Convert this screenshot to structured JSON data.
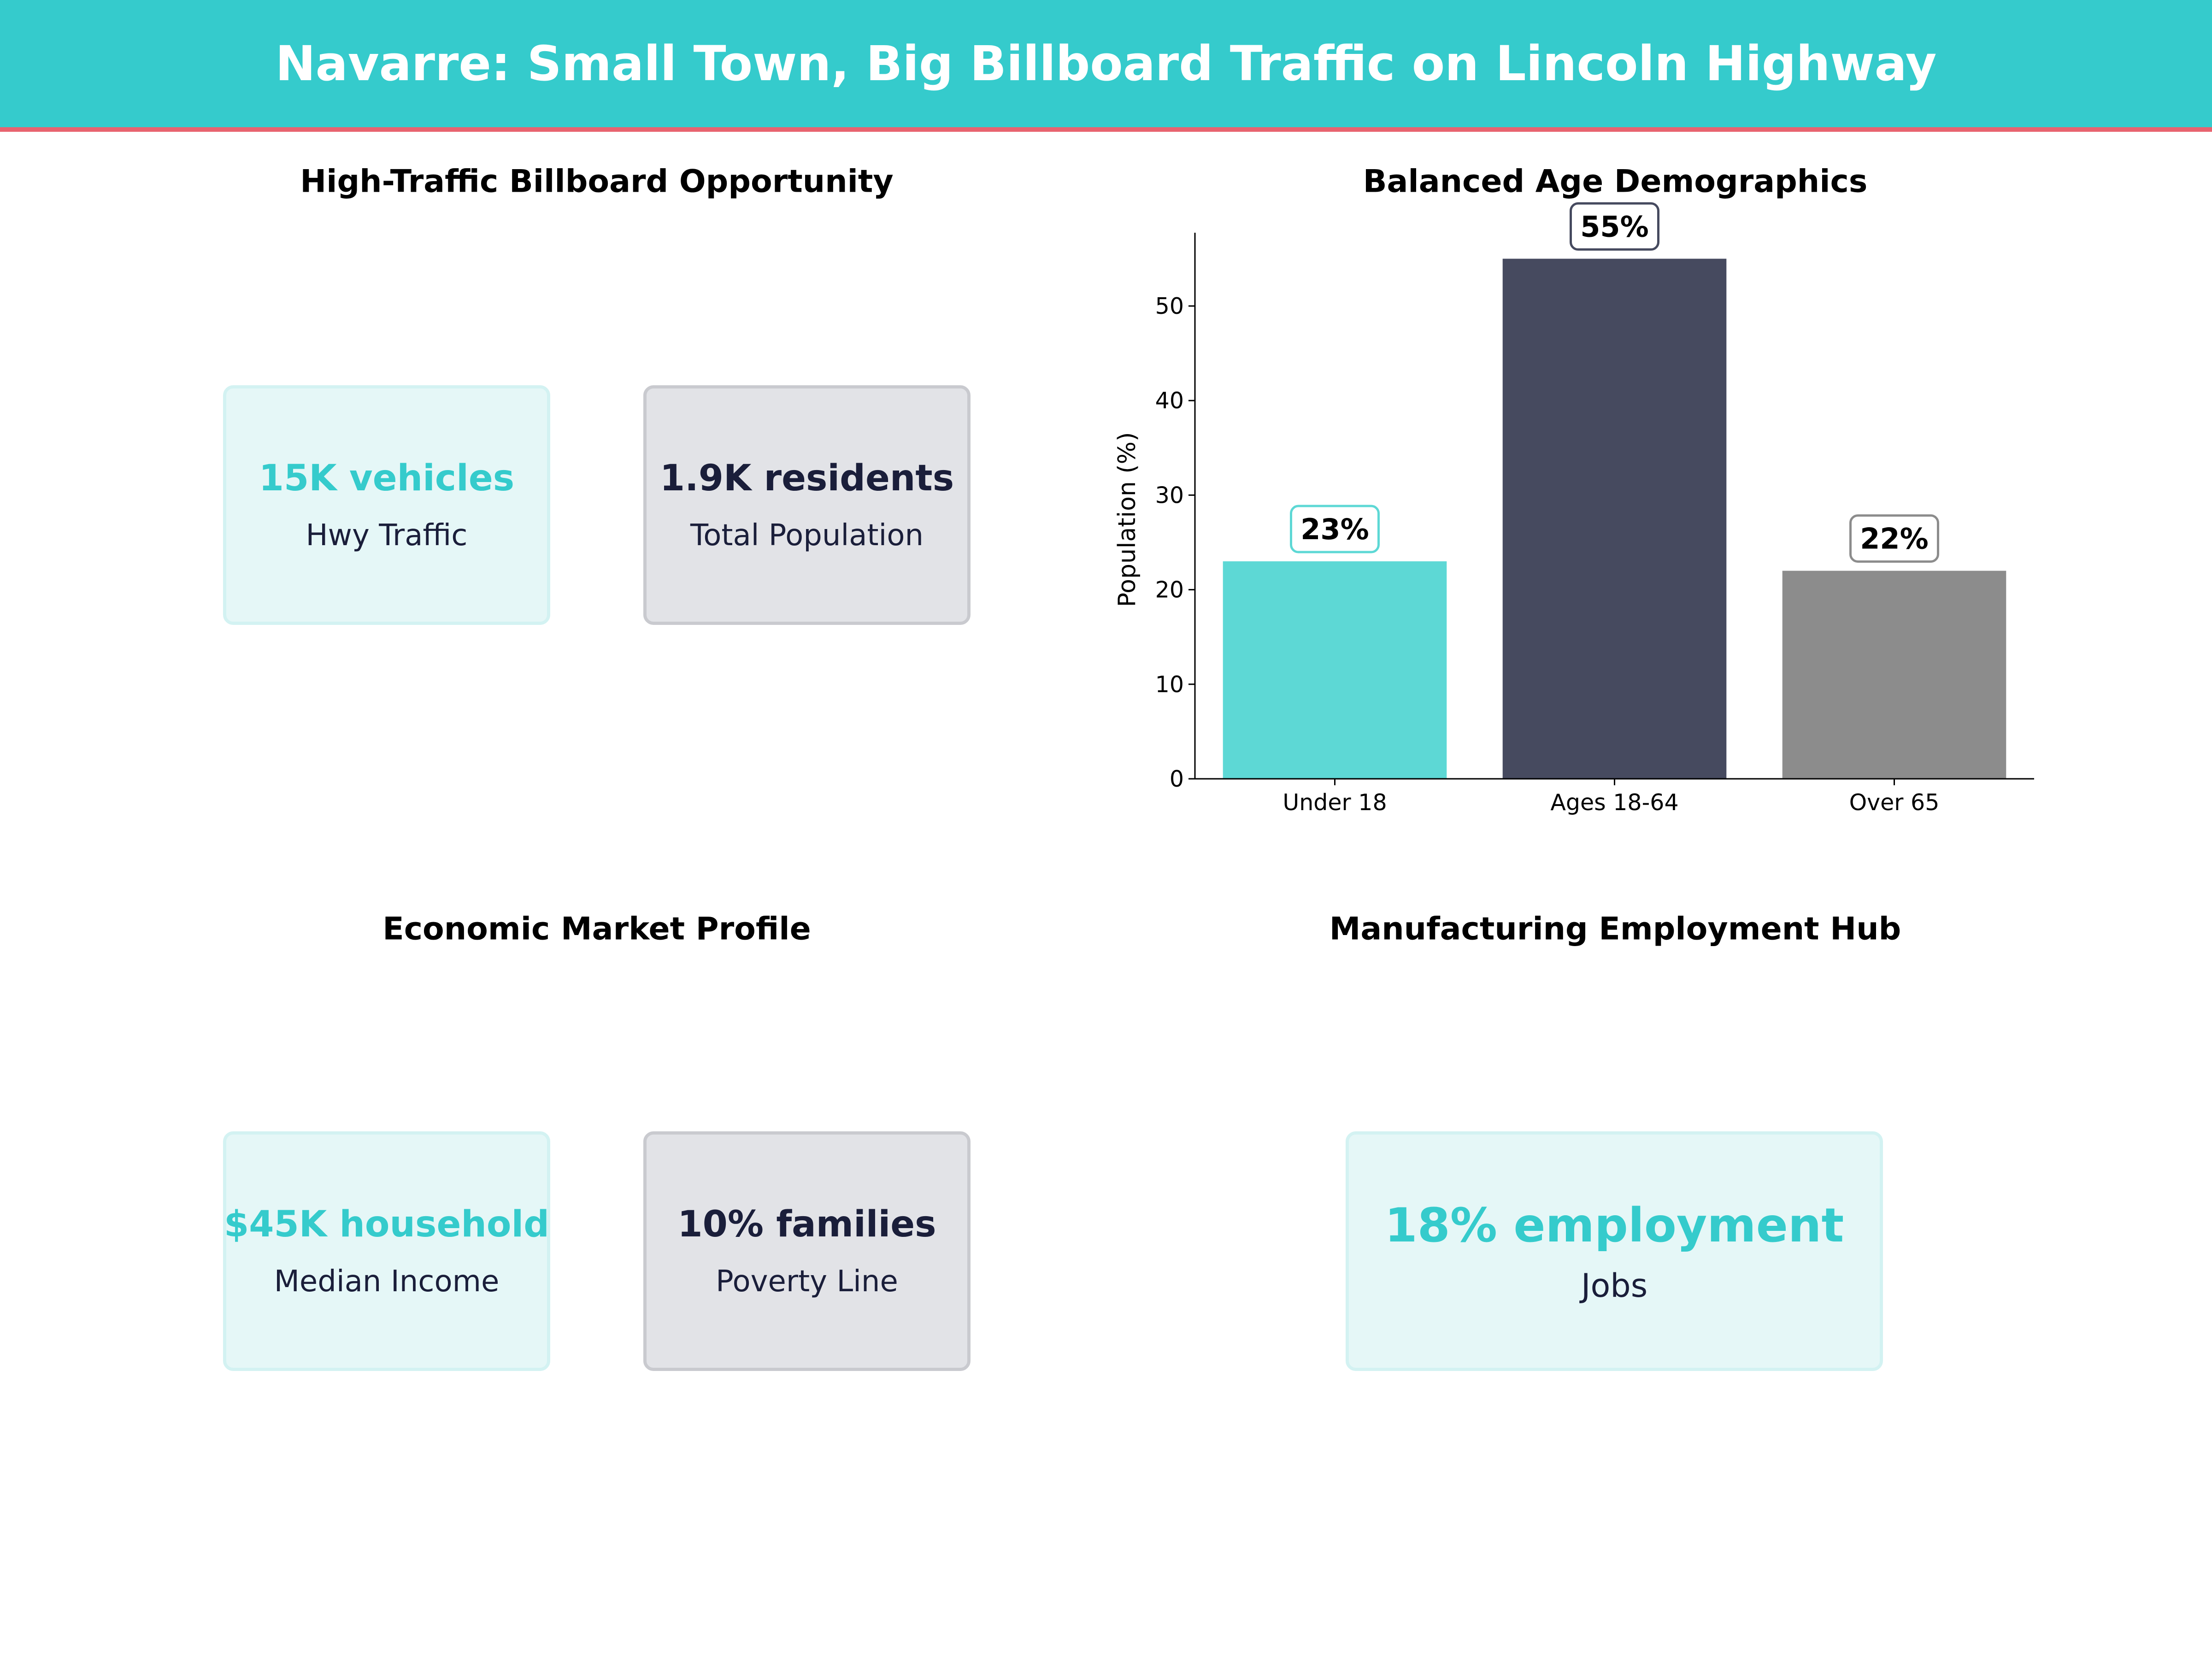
{
  "title": "Navarre: Small Town, Big Billboard Traffic on Lincoln Highway",
  "colors": {
    "accent": "#35CBCC",
    "header_rule": "#E8636F",
    "dark": "#1A1E3A"
  },
  "panels": {
    "traffic": {
      "title": "High-Traffic Billboard Opportunity",
      "cards": [
        {
          "value": "15K vehicles",
          "label": "Hwy Traffic"
        },
        {
          "value": "1.9K residents",
          "label": "Total Population"
        }
      ]
    },
    "economic": {
      "title": "Economic Market Profile",
      "cards": [
        {
          "value": "$45K household",
          "label": "Median Income"
        },
        {
          "value": "10% families",
          "label": "Poverty Line"
        }
      ]
    },
    "employment": {
      "title": "Manufacturing Employment Hub",
      "cards": [
        {
          "value": "18% employment",
          "label": "Jobs"
        }
      ]
    }
  },
  "chart_data": {
    "type": "bar",
    "title": "Balanced Age Demographics",
    "categories": [
      "Under 18",
      "Ages 18-64",
      "Over 65"
    ],
    "values": [
      23,
      55,
      22
    ],
    "data_labels": [
      "23%",
      "55%",
      "22%"
    ],
    "colors": [
      "#5DD8D5",
      "#464A5F",
      "#8C8C8C"
    ],
    "xlabel": "",
    "ylabel": "Population (%)",
    "ylim": [
      0,
      57.75
    ],
    "yticks": [
      0,
      10,
      20,
      30,
      40,
      50
    ],
    "grid": false
  }
}
